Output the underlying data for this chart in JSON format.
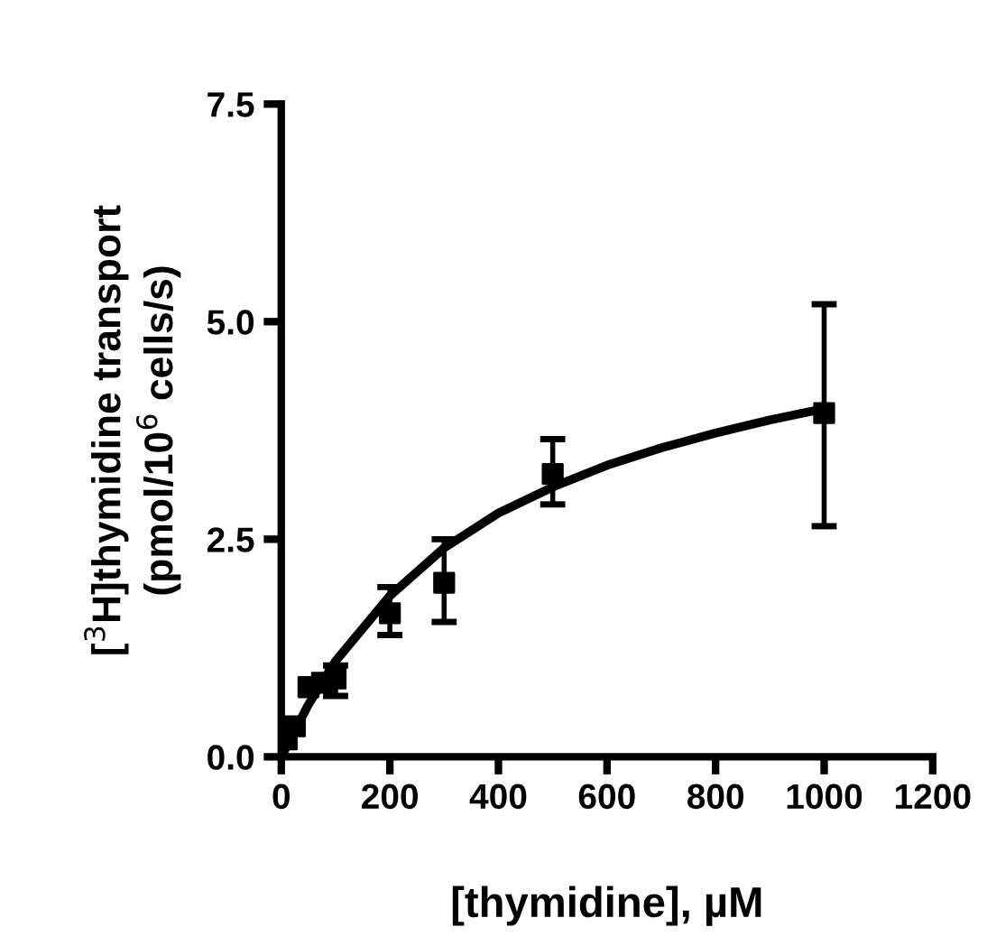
{
  "chart_data": {
    "type": "scatter",
    "xlabel": "[thymidine], µM",
    "ylabel": "[$^{3}$H]thymidine transport\n(pmol/10$^{6}$ cells/s)",
    "xlim": [
      0,
      1200
    ],
    "xticks": [
      0,
      200,
      400,
      600,
      800,
      1000,
      1200
    ],
    "ylim": [
      0,
      7.5
    ],
    "yticks": [
      {
        "value": 0,
        "label": "0.0"
      },
      {
        "value": 2.5,
        "label": "2.5"
      },
      {
        "value": 5,
        "label": "5.0"
      },
      {
        "value": 7.5,
        "label": "7.5"
      }
    ],
    "grid": false,
    "series": [
      {
        "color": "#000000",
        "marker": "square",
        "x": [
          10,
          25,
          50,
          75,
          100,
          200,
          300,
          500,
          1000
        ],
        "values": [
          0.2,
          0.35,
          0.8,
          0.85,
          0.9,
          1.65,
          2.0,
          3.25,
          3.95
        ],
        "errors": [
          null,
          null,
          null,
          null,
          [
            0.7,
            1.05
          ],
          [
            1.4,
            1.95
          ],
          [
            1.55,
            2.5
          ],
          [
            2.9,
            3.65
          ],
          [
            2.65,
            5.2
          ]
        ]
      },
      {
        "type": "line",
        "color": "#000000",
        "marker": "none",
        "line_style": "solid",
        "x": [
          0,
          50,
          100,
          200,
          300,
          400,
          500,
          600,
          700,
          800,
          900,
          1000
        ],
        "values": [
          0,
          0.6,
          1.1,
          1.85,
          2.4,
          2.8,
          3.1,
          3.35,
          3.55,
          3.72,
          3.87,
          4.0
        ]
      }
    ]
  }
}
